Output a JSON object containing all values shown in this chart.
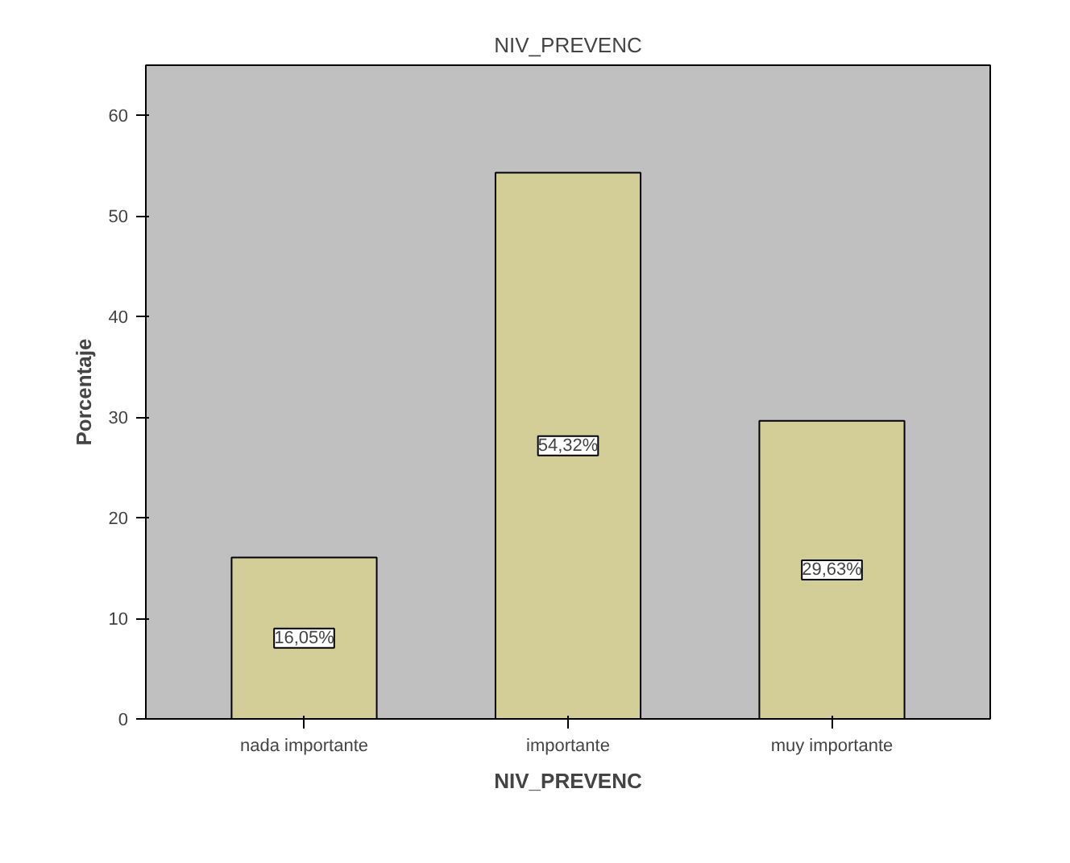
{
  "chart_data": {
    "type": "bar",
    "title": "NIV_PREVENC",
    "xlabel": "NIV_PREVENC",
    "ylabel": "Porcentaje",
    "categories": [
      "nada importante",
      "importante",
      "muy importante"
    ],
    "values": [
      16.05,
      54.32,
      29.63
    ],
    "value_labels": [
      "16,05%",
      "54,32%",
      "29,63%"
    ],
    "color": "#d3cd98",
    "ylim": [
      0,
      65
    ],
    "yticks": [
      0,
      10,
      20,
      30,
      40,
      50,
      60
    ],
    "grid": false
  }
}
